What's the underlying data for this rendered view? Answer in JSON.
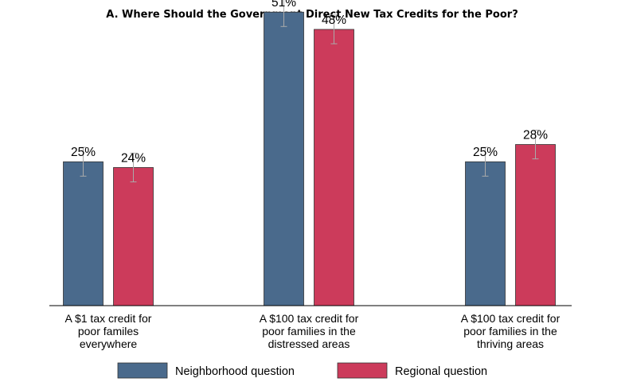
{
  "chart_data": {
    "type": "bar",
    "title": "A. Where Should the Government Direct New Tax Credits for the Poor?",
    "xlabel": "",
    "ylabel": "",
    "ylim": [
      0,
      52
    ],
    "grid": false,
    "categories": [
      [
        "A $1 tax credit for",
        "poor familes",
        "everywhere"
      ],
      [
        "A $100 tax credit for",
        "poor families in the",
        "distressed areas"
      ],
      [
        "A $100 tax credit for",
        "poor families in the",
        "thriving areas"
      ]
    ],
    "series": [
      {
        "name": "Neighborhood question",
        "color": "#4a6a8c",
        "values": [
          25,
          51,
          25
        ],
        "labels": [
          "25%",
          "51%",
          "25%"
        ],
        "ci": [
          [
            22.5,
            27.5
          ],
          [
            48.5,
            53.5
          ],
          [
            22.5,
            27.5
          ]
        ]
      },
      {
        "name": "Regional question",
        "color": "#cc3b5b",
        "values": [
          24,
          48,
          28
        ],
        "labels": [
          "24%",
          "48%",
          "28%"
        ],
        "ci": [
          [
            21.5,
            26.5
          ],
          [
            45.5,
            50.5
          ],
          [
            25.5,
            30.5
          ]
        ]
      }
    ],
    "legend_position": "bottom"
  }
}
